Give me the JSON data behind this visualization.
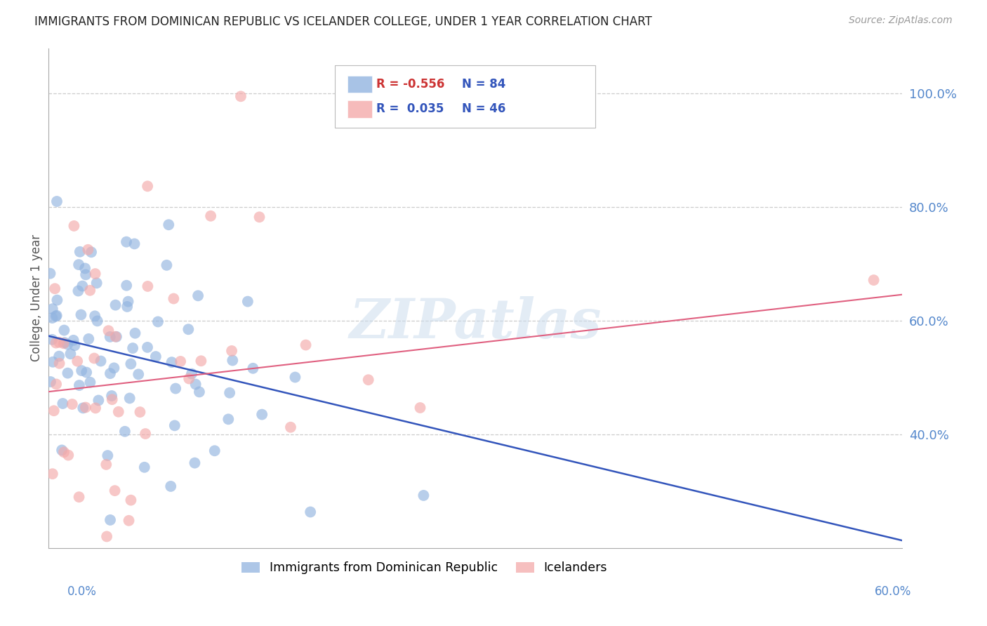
{
  "title": "IMMIGRANTS FROM DOMINICAN REPUBLIC VS ICELANDER COLLEGE, UNDER 1 YEAR CORRELATION CHART",
  "source": "Source: ZipAtlas.com",
  "ylabel": "College, Under 1 year",
  "xlabel_bottom_left": "0.0%",
  "xlabel_bottom_right": "60.0%",
  "xlim": [
    0.0,
    0.6
  ],
  "ylim": [
    0.2,
    1.08
  ],
  "yticks": [
    0.4,
    0.6,
    0.8,
    1.0
  ],
  "ytick_labels": [
    "40.0%",
    "60.0%",
    "80.0%",
    "100.0%"
  ],
  "blue_R": -0.556,
  "blue_N": 84,
  "pink_R": 0.035,
  "pink_N": 46,
  "blue_label": "Immigrants from Dominican Republic",
  "pink_label": "Icelanders",
  "blue_color": "#92B4E0",
  "pink_color": "#F4AAAA",
  "blue_line_color": "#3355BB",
  "pink_line_color": "#E06080",
  "background_color": "#FFFFFF",
  "grid_color": "#CCCCCC",
  "axis_color": "#5588CC",
  "watermark": "ZIPatlas",
  "blue_intercept": 0.573,
  "blue_slope": -0.6,
  "pink_intercept": 0.475,
  "pink_slope": 0.285
}
